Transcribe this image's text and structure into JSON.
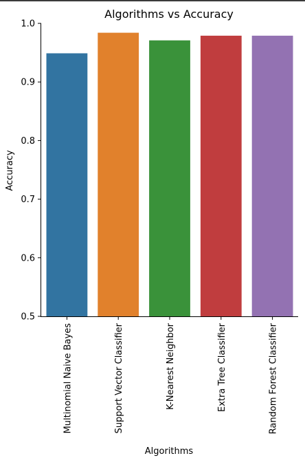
{
  "chart_data": {
    "type": "bar",
    "title": "Algorithms vs Accuracy",
    "xlabel": "Algorithms",
    "ylabel": "Accuracy",
    "categories": [
      "Multinomial Naive Bayes",
      "Support Vector Classifier",
      "K-Nearest Neighbor",
      "Extra Tree Classifier",
      "Random Forest Classifier"
    ],
    "values": [
      0.949,
      0.984,
      0.971,
      0.979,
      0.979
    ],
    "colors": [
      "#3274a1",
      "#e1812c",
      "#3a923a",
      "#c03d3e",
      "#9372b2"
    ],
    "ylim": [
      0.5,
      1.0
    ],
    "yticks": [
      0.5,
      0.6,
      0.7,
      0.8,
      0.9,
      1.0
    ],
    "ytick_labels": [
      "0.5",
      "0.6",
      "0.7",
      "0.8",
      "0.9",
      "1.0"
    ],
    "grid": false,
    "legend": "none"
  }
}
